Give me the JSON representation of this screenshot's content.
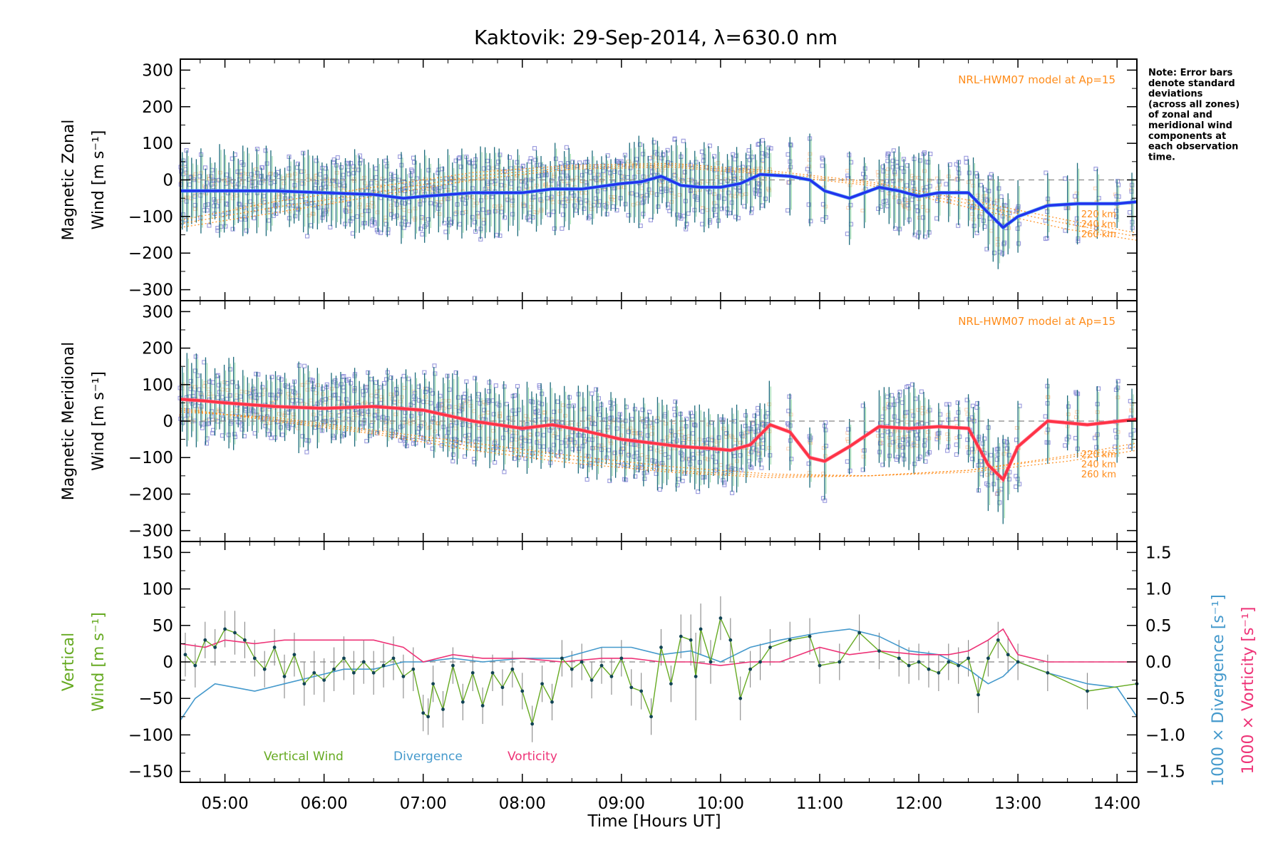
{
  "chart_data": {
    "type": "line",
    "title": "Kaktovik: 29-Sep-2014, λ=630.0 nm",
    "note": [
      "Note: Error bars",
      "denote standard",
      "deviations",
      "(across all zones)",
      "of zonal and",
      "meridional wind",
      "components at",
      "each observation",
      "time."
    ],
    "xlabel": "Time [Hours UT]",
    "xlim": [
      4.55,
      14.2
    ],
    "xticks": [
      "05:00",
      "06:00",
      "07:00",
      "08:00",
      "09:00",
      "10:00",
      "11:00",
      "12:00",
      "13:00",
      "14:00"
    ],
    "xtick_values": [
      5,
      6,
      7,
      8,
      9,
      10,
      11,
      12,
      13,
      14
    ],
    "colors": {
      "zonal": "#2233ee",
      "zonal_light": "#55aaee",
      "meridional": "#ff3344",
      "meridional_light": "#ff6688",
      "model": "#ff8c1a",
      "scatter": "#9999dd",
      "vertical": "#66aa22",
      "divergence": "#4499cc",
      "vorticity": "#ee3377",
      "errorbar": "#888888",
      "zero": "#888888"
    },
    "panels": [
      {
        "id": "zonal",
        "ylabel_lines": [
          "Magnetic Zonal",
          "Wind [m s⁻¹]"
        ],
        "ylim": [
          -330,
          330
        ],
        "yticks": [
          300,
          200,
          100,
          0,
          -100,
          -200,
          -300
        ],
        "yticklabels": [
          "300",
          "200",
          "100",
          "0",
          "−100",
          "−200",
          "−300"
        ],
        "model_label": "NRL-HWM07 model at Ap=15",
        "model_altitudes": [
          "220 km",
          "240 km",
          "260 km"
        ],
        "series": {
          "x": [
            4.55,
            4.8,
            5.0,
            5.5,
            6.0,
            6.5,
            6.8,
            7.0,
            7.5,
            8.0,
            8.3,
            8.6,
            9.0,
            9.2,
            9.4,
            9.6,
            9.8,
            10.0,
            10.2,
            10.4,
            10.7,
            10.9,
            11.05,
            11.3,
            11.6,
            11.8,
            12.0,
            12.2,
            12.5,
            12.7,
            12.85,
            13.0,
            13.3,
            13.6,
            14.0,
            14.2
          ],
          "y": [
            -30,
            -30,
            -30,
            -30,
            -35,
            -40,
            -50,
            -45,
            -35,
            -35,
            -25,
            -25,
            -10,
            -5,
            10,
            -15,
            -20,
            -20,
            -10,
            15,
            10,
            0,
            -30,
            -50,
            -20,
            -30,
            -45,
            -35,
            -35,
            -90,
            -130,
            -100,
            -70,
            -65,
            -65,
            -60
          ]
        },
        "model": {
          "x": [
            4.55,
            5.5,
            6.5,
            7.5,
            8.5,
            9.5,
            10.5,
            11.5,
            12.5,
            13.5,
            14.2
          ],
          "y220": [
            -110,
            -60,
            -20,
            20,
            40,
            45,
            25,
            -5,
            -55,
            -110,
            -145
          ],
          "y240": [
            -120,
            -75,
            -35,
            10,
            35,
            40,
            20,
            -10,
            -65,
            -120,
            -155
          ],
          "y260": [
            -130,
            -90,
            -45,
            0,
            30,
            35,
            15,
            -15,
            -75,
            -135,
            -165
          ]
        }
      },
      {
        "id": "meridional",
        "ylabel_lines": [
          "Magnetic Meridional",
          "Wind [m s⁻¹]"
        ],
        "ylim": [
          -330,
          330
        ],
        "yticks": [
          300,
          200,
          100,
          0,
          -100,
          -200,
          -300
        ],
        "yticklabels": [
          "300",
          "200",
          "100",
          "0",
          "−100",
          "−200",
          "−300"
        ],
        "model_label": "NRL-HWM07 model at Ap=15",
        "model_altitudes": [
          "220 km",
          "240 km",
          "260 km"
        ],
        "series": {
          "x": [
            4.55,
            4.8,
            5.0,
            5.5,
            6.0,
            6.5,
            7.0,
            7.5,
            8.0,
            8.3,
            8.6,
            9.0,
            9.3,
            9.6,
            9.9,
            10.1,
            10.3,
            10.5,
            10.7,
            10.9,
            11.05,
            11.3,
            11.6,
            11.9,
            12.2,
            12.5,
            12.7,
            12.85,
            13.0,
            13.3,
            13.7,
            14.2
          ],
          "y": [
            60,
            55,
            50,
            40,
            35,
            40,
            30,
            0,
            -20,
            -10,
            -25,
            -50,
            -60,
            -70,
            -75,
            -80,
            -65,
            -10,
            -30,
            -100,
            -110,
            -70,
            -15,
            -20,
            -15,
            -20,
            -120,
            -160,
            -70,
            0,
            -10,
            5
          ]
        },
        "model": {
          "x": [
            4.55,
            5.5,
            6.5,
            7.5,
            8.5,
            9.5,
            10.5,
            11.5,
            12.5,
            13.5,
            14.2
          ],
          "y220": [
            25,
            10,
            -25,
            -60,
            -95,
            -125,
            -145,
            -150,
            -135,
            -95,
            -60
          ],
          "y240": [
            30,
            5,
            -30,
            -70,
            -105,
            -135,
            -150,
            -150,
            -135,
            -100,
            -70
          ],
          "y260": [
            35,
            0,
            -35,
            -80,
            -115,
            -140,
            -155,
            -150,
            -140,
            -110,
            -80
          ]
        }
      },
      {
        "id": "vertical",
        "ylabel_left": [
          "Vertical",
          "Wind [m s⁻¹]"
        ],
        "ylabel_right_1": "1000 × Divergence [s⁻¹]",
        "ylabel_right_2": "1000 × Vorticity [s⁻¹]",
        "ylim": [
          -165,
          165
        ],
        "yticks": [
          150,
          100,
          50,
          0,
          -50,
          -100,
          -150
        ],
        "yticklabels": [
          "150",
          "100",
          "50",
          "0",
          "−50",
          "−100",
          "−150"
        ],
        "ylim_right": [
          -1.65,
          1.65
        ],
        "yticks_right": [
          1.5,
          1.0,
          0.5,
          0.0,
          -0.5,
          -1.0,
          -1.5
        ],
        "yticklabels_right": [
          "1.5",
          "1.0",
          "0.5",
          "0.0",
          "−0.5",
          "−1.0",
          "−1.5"
        ],
        "legend": [
          "Vertical Wind",
          "Divergence",
          "Vorticity"
        ],
        "vertical_wind": {
          "x": [
            4.6,
            4.7,
            4.8,
            4.9,
            5.0,
            5.1,
            5.2,
            5.3,
            5.4,
            5.5,
            5.6,
            5.7,
            5.8,
            5.9,
            6.0,
            6.1,
            6.2,
            6.3,
            6.4,
            6.5,
            6.6,
            6.7,
            6.8,
            6.9,
            7.0,
            7.05,
            7.1,
            7.2,
            7.3,
            7.4,
            7.5,
            7.6,
            7.7,
            7.8,
            7.9,
            8.0,
            8.1,
            8.2,
            8.3,
            8.4,
            8.5,
            8.6,
            8.7,
            8.8,
            8.9,
            9.0,
            9.1,
            9.2,
            9.3,
            9.4,
            9.5,
            9.6,
            9.7,
            9.75,
            9.8,
            9.9,
            10.0,
            10.1,
            10.2,
            10.3,
            10.4,
            10.5,
            10.7,
            10.9,
            11.0,
            11.2,
            11.4,
            11.6,
            11.8,
            11.9,
            12.0,
            12.1,
            12.2,
            12.3,
            12.4,
            12.5,
            12.6,
            12.7,
            12.8,
            12.9,
            13.0,
            13.3,
            13.7,
            14.2
          ],
          "y": [
            10,
            -5,
            30,
            20,
            45,
            40,
            30,
            5,
            -10,
            20,
            -20,
            10,
            -30,
            -15,
            -25,
            -10,
            5,
            -15,
            0,
            -15,
            -5,
            5,
            -20,
            -10,
            -70,
            -75,
            -30,
            -65,
            -5,
            -55,
            -15,
            -60,
            -15,
            -35,
            -10,
            -40,
            -85,
            -30,
            -55,
            5,
            -10,
            0,
            -25,
            -5,
            -20,
            5,
            -35,
            -40,
            -75,
            20,
            -30,
            35,
            30,
            -20,
            45,
            0,
            60,
            30,
            -50,
            -10,
            0,
            20,
            30,
            35,
            -5,
            0,
            40,
            15,
            5,
            -5,
            0,
            -10,
            -15,
            0,
            -5,
            5,
            -45,
            5,
            30,
            10,
            0,
            -15,
            -40,
            -30
          ]
        },
        "vertical_wind_err": [
          30,
          30,
          25,
          25,
          25,
          30,
          25,
          25,
          25,
          25,
          30,
          30,
          30,
          30,
          30,
          30,
          30,
          30,
          30,
          30,
          30,
          30,
          30,
          30,
          25,
          25,
          25,
          25,
          25,
          25,
          25,
          25,
          25,
          25,
          25,
          25,
          25,
          25,
          25,
          25,
          25,
          25,
          25,
          25,
          25,
          25,
          25,
          25,
          25,
          25,
          25,
          30,
          35,
          60,
          35,
          30,
          30,
          30,
          30,
          25,
          25,
          25,
          25,
          25,
          25,
          25,
          25,
          25,
          25,
          25,
          25,
          25,
          25,
          25,
          25,
          25,
          25,
          25,
          25,
          25,
          25,
          25,
          25,
          25
        ],
        "divergence": {
          "x": [
            4.55,
            4.7,
            4.9,
            5.1,
            5.3,
            5.6,
            5.9,
            6.2,
            6.5,
            6.8,
            7.0,
            7.3,
            7.6,
            8.0,
            8.4,
            8.8,
            9.1,
            9.4,
            9.7,
            10.0,
            10.3,
            10.6,
            11.0,
            11.3,
            11.6,
            11.9,
            12.2,
            12.5,
            12.7,
            12.85,
            13.0,
            13.3,
            13.7,
            14.0,
            14.2
          ],
          "y": [
            -0.8,
            -0.5,
            -0.3,
            -0.35,
            -0.4,
            -0.3,
            -0.2,
            -0.1,
            -0.1,
            0.0,
            0.0,
            0.05,
            0.0,
            0.05,
            0.05,
            0.2,
            0.2,
            0.1,
            0.15,
            0.0,
            0.2,
            0.3,
            0.4,
            0.45,
            0.35,
            0.15,
            0.1,
            -0.1,
            -0.3,
            -0.2,
            0.0,
            -0.15,
            -0.3,
            -0.35,
            -0.75
          ]
        },
        "vorticity": {
          "x": [
            4.55,
            4.8,
            5.0,
            5.3,
            5.6,
            5.9,
            6.2,
            6.5,
            6.8,
            7.0,
            7.3,
            7.6,
            8.0,
            8.4,
            8.8,
            9.1,
            9.4,
            9.7,
            10.0,
            10.3,
            10.6,
            11.0,
            11.3,
            11.6,
            12.0,
            12.3,
            12.5,
            12.7,
            12.85,
            13.0,
            13.3,
            13.7,
            14.2
          ],
          "y": [
            0.25,
            0.2,
            0.3,
            0.25,
            0.3,
            0.3,
            0.3,
            0.3,
            0.2,
            0.0,
            0.1,
            0.05,
            0.05,
            0.0,
            0.05,
            0.05,
            0.0,
            0.0,
            -0.05,
            0.0,
            0.0,
            0.2,
            0.1,
            0.15,
            0.1,
            0.1,
            0.15,
            0.3,
            0.45,
            0.1,
            0.0,
            0.0,
            0.0
          ]
        }
      }
    ]
  }
}
